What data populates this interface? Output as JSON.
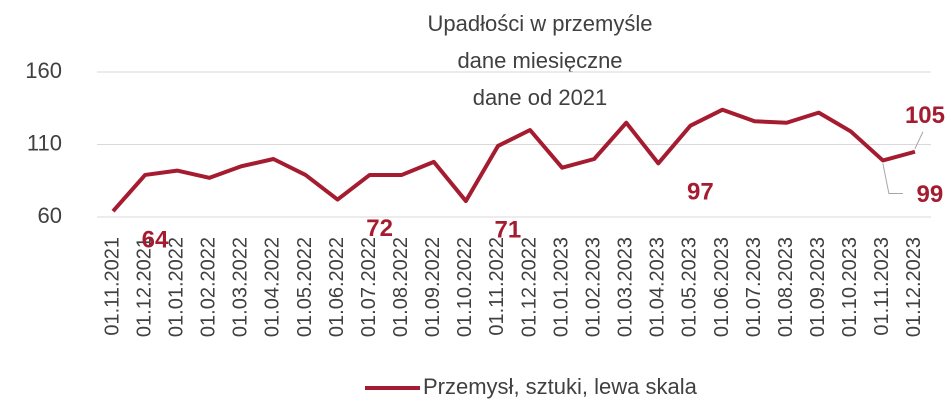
{
  "chart_data": {
    "type": "line",
    "title": [
      "Upadłości w przemyśle",
      "dane miesięczne",
      "dane od 2021"
    ],
    "categories": [
      "01.11.2021",
      "01.12.2021",
      "01.01.2022",
      "01.02.2022",
      "01.03.2022",
      "01.04.2022",
      "01.05.2022",
      "01.06.2022",
      "01.07.2022",
      "01.08.2022",
      "01.09.2022",
      "01.10.2022",
      "01.11.2022",
      "01.12.2022",
      "01.01.2023",
      "01.02.2023",
      "01.03.2023",
      "01.04.2023",
      "01.05.2023",
      "01.06.2023",
      "01.07.2023",
      "01.08.2023",
      "01.09.2023",
      "01.10.2023",
      "01.11.2023",
      "01.12.2023"
    ],
    "series": [
      {
        "name": "Przemysł, sztuki, lewa skala",
        "color": "#a51c30",
        "values": [
          64,
          89,
          92,
          87,
          95,
          100,
          89,
          72,
          89,
          89,
          98,
          71,
          109,
          120,
          94,
          100,
          125,
          97,
          123,
          134,
          126,
          125,
          132,
          119,
          99,
          105
        ],
        "value_labels": [
          "64",
          null,
          null,
          null,
          null,
          null,
          null,
          "72",
          null,
          null,
          null,
          "71",
          null,
          null,
          null,
          null,
          null,
          "97",
          null,
          null,
          null,
          null,
          null,
          null,
          "99",
          "105"
        ]
      }
    ],
    "ylim": [
      60,
      160
    ],
    "yticks": [
      60,
      110,
      160
    ],
    "grid": true,
    "legend": "bottom"
  }
}
